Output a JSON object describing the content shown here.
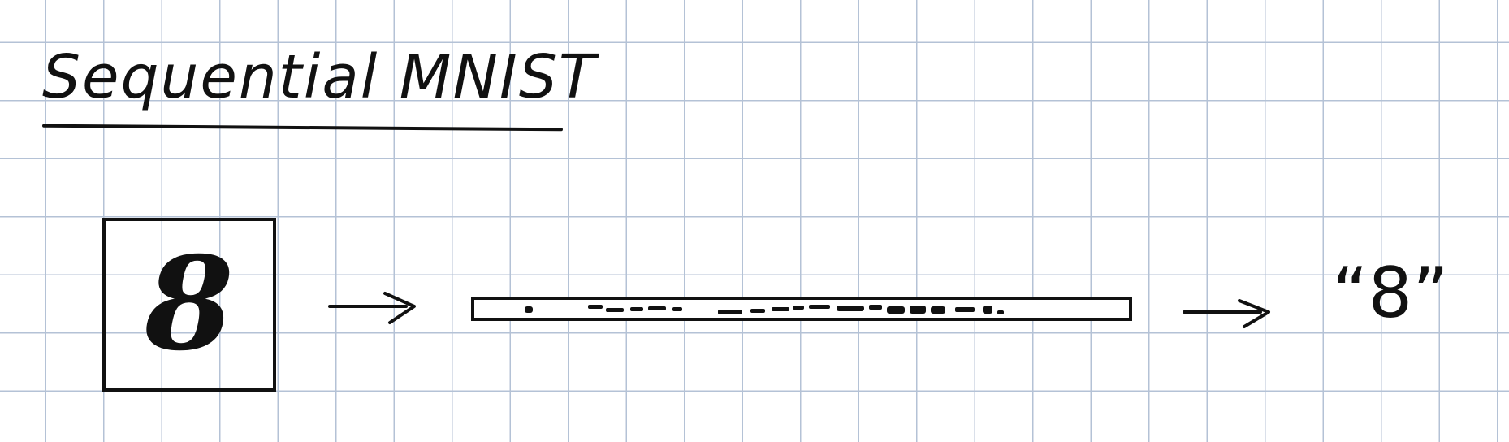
{
  "title": "Sequential MNIST",
  "input_digit": "8",
  "output_label": "“8”",
  "colors": {
    "ink": "#111111",
    "grid": "#b4c2d6",
    "paper": "#ffffff"
  },
  "icons": [
    "right-arrow-icon",
    "right-arrow-icon"
  ]
}
